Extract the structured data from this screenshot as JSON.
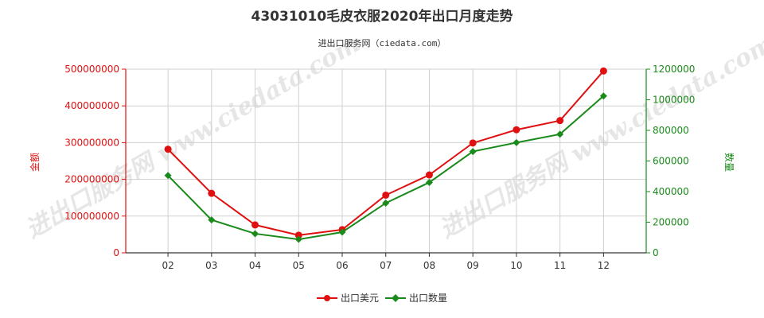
{
  "chart_data": {
    "type": "line",
    "title": "43031010毛皮衣服2020年出口月度走势",
    "subtitle": "进出口服务网（ciedata.com）",
    "categories": [
      "02",
      "03",
      "04",
      "05",
      "06",
      "07",
      "08",
      "09",
      "10",
      "11",
      "12"
    ],
    "ylabel_left": "金额",
    "ylabel_right": "数量",
    "ylim_left": [
      0,
      500000000
    ],
    "ylim_right": [
      0,
      1200000
    ],
    "yticks_left": [
      "0",
      "100000000",
      "200000000",
      "300000000",
      "400000000",
      "500000000"
    ],
    "yticks_right": [
      "0",
      "200000",
      "400000",
      "600000",
      "800000",
      "1000000",
      "1200000"
    ],
    "grid": true,
    "legend_position": "bottom",
    "series": [
      {
        "name": "出口美元",
        "axis": "left",
        "color": "#e01010",
        "marker": "circle",
        "values": [
          282000000,
          162000000,
          76000000,
          48000000,
          63000000,
          157000000,
          212000000,
          299000000,
          335000000,
          360000000,
          495000000
        ]
      },
      {
        "name": "出口数量",
        "axis": "right",
        "color": "#1a8a1a",
        "marker": "diamond",
        "values": [
          505000,
          215000,
          125000,
          88000,
          135000,
          325000,
          460000,
          662000,
          720000,
          775000,
          1025000
        ]
      }
    ],
    "watermark": "进出口服务网 www.ciedata.com"
  }
}
